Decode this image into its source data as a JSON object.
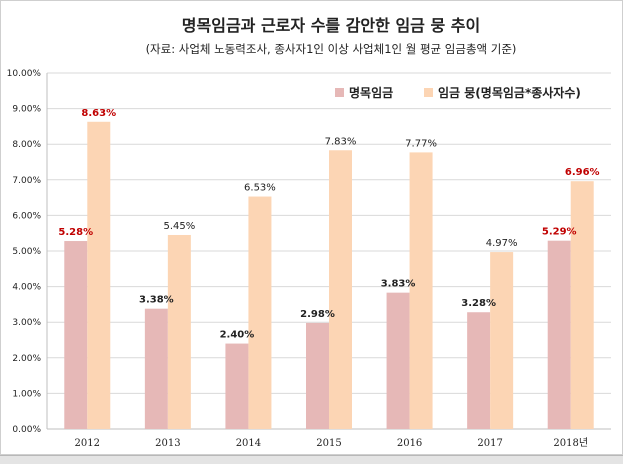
{
  "colors": {
    "series1": "#e6b8b7",
    "series2": "#fcd5b4",
    "highlight_label": "#c00000",
    "normal_label": "#222222",
    "gridline": "#d9d9d9",
    "axis": "#bfbfbf"
  },
  "chart_data": {
    "type": "bar",
    "title": "명목임금과 근로자 수를 감안한 임금 뭉 추이",
    "subtitle": "(자료: 사업체 노동력조사, 종사자1인 이상 사업체1인 월 평균 임금총액 기준)",
    "categories": [
      "2012",
      "2013",
      "2014",
      "2015",
      "2016",
      "2017",
      "2018년"
    ],
    "series": [
      {
        "name": "명목임금",
        "values": [
          5.28,
          3.38,
          2.4,
          2.98,
          3.83,
          3.28,
          5.29
        ],
        "labels": [
          "5.28%",
          "3.38%",
          "2.40%",
          "2.98%",
          "3.83%",
          "3.28%",
          "5.29%"
        ],
        "highlight": [
          true,
          false,
          false,
          false,
          false,
          false,
          true
        ]
      },
      {
        "name": "임금 뭉(명목임금*종사자수)",
        "values": [
          8.63,
          5.45,
          6.53,
          7.83,
          7.77,
          4.97,
          6.96
        ],
        "labels": [
          "8.63%",
          "5.45%",
          "6.53%",
          "7.83%",
          "7.77%",
          "4.97%",
          "6.96%"
        ],
        "highlight": [
          true,
          false,
          false,
          false,
          false,
          false,
          true
        ]
      }
    ],
    "ylim": [
      0,
      10
    ],
    "yticks": [
      "0.00%",
      "1.00%",
      "2.00%",
      "3.00%",
      "4.00%",
      "5.00%",
      "6.00%",
      "7.00%",
      "8.00%",
      "9.00%",
      "10.00%"
    ],
    "grid": true,
    "legend_position": "top-right",
    "xlabel": "",
    "ylabel": ""
  },
  "sheet_tabs": []
}
